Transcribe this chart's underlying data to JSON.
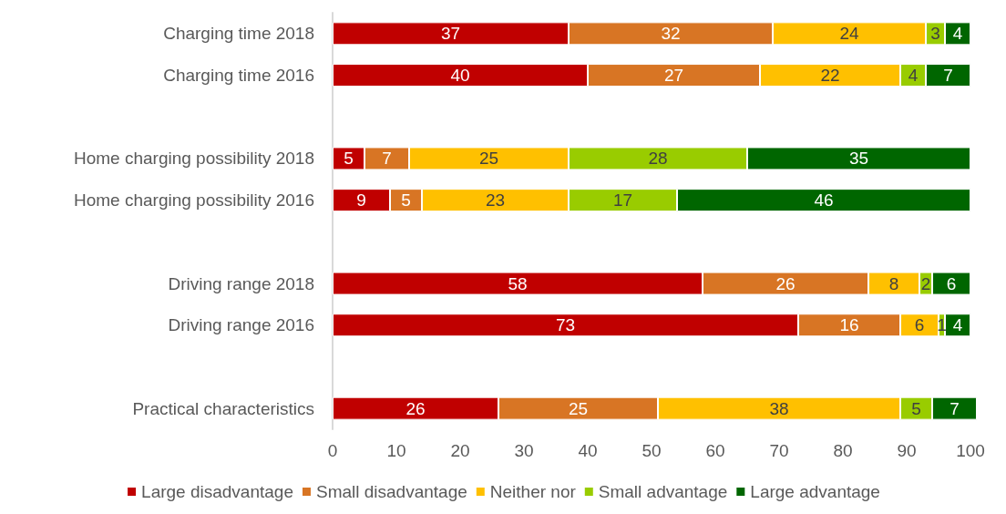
{
  "chart_data": {
    "type": "bar",
    "orientation": "horizontal",
    "stacked": true,
    "data_labels": true,
    "grid": false,
    "legend": "bottom",
    "categories": [
      "Charging time 2018",
      "Charging time 2016",
      null,
      "Home charging possibility 2018",
      "Home charging possibility 2016",
      null,
      "Driving range 2018",
      "Driving range 2016",
      null,
      "Practical characteristics"
    ],
    "xlim": [
      0,
      101
    ],
    "xticks": [
      0,
      10,
      20,
      30,
      40,
      50,
      60,
      70,
      80,
      90,
      100
    ],
    "series": [
      {
        "name": "Large disadvantage",
        "color": "#c00000",
        "values": [
          37,
          40,
          null,
          5,
          9,
          null,
          58,
          73,
          null,
          26
        ]
      },
      {
        "name": "Small disadvantage",
        "color": "#d87524",
        "values": [
          32,
          27,
          null,
          7,
          5,
          null,
          26,
          16,
          null,
          25
        ]
      },
      {
        "name": "Neither nor",
        "color": "#ffc000",
        "values": [
          24,
          22,
          null,
          25,
          23,
          null,
          8,
          6,
          null,
          38
        ]
      },
      {
        "name": "Small advantage",
        "color": "#99cc00",
        "values": [
          3,
          4,
          null,
          28,
          17,
          null,
          2,
          1,
          null,
          5
        ]
      },
      {
        "name": "Large advantage",
        "color": "#006600",
        "values": [
          4,
          7,
          null,
          35,
          46,
          null,
          6,
          4,
          null,
          7
        ]
      }
    ]
  }
}
